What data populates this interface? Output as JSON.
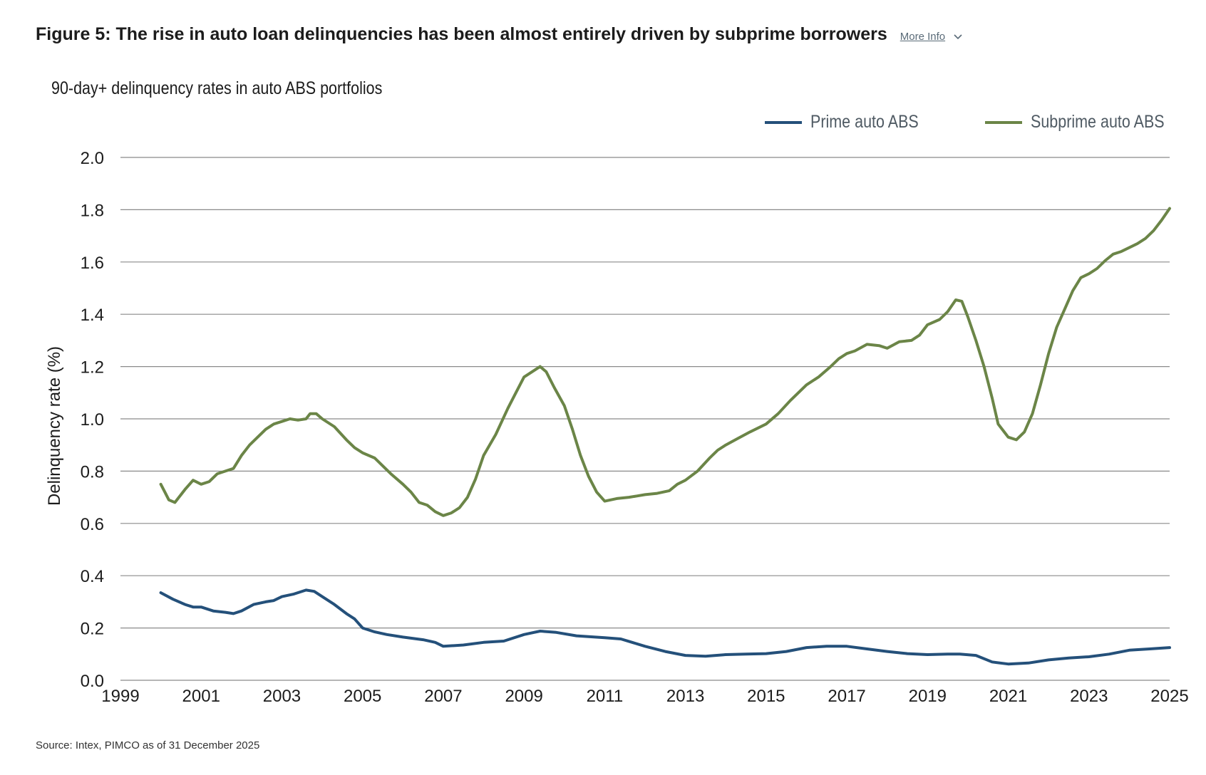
{
  "header": {
    "title": "Figure 5: The rise in auto loan delinquencies has been almost entirely driven by subprime borrowers",
    "more_info": "More Info"
  },
  "source": "Source: Intex, PIMCO as of 31 December 2025",
  "colors": {
    "prime": "#24507a",
    "subprime": "#6b8547",
    "grid": "#8a8a8a"
  },
  "icons": {
    "more_info": "chevron-down-icon"
  },
  "chart_data": {
    "type": "line",
    "title": "90-day+ delinquency rates in auto ABS portfolios",
    "ylabel": "Delinquency rate (%)",
    "xlabel": "",
    "xlim": [
      1999,
      2025
    ],
    "ylim": [
      0,
      2.0
    ],
    "yticks": [
      "0.0",
      "0.2",
      "0.4",
      "0.6",
      "0.8",
      "1.0",
      "1.2",
      "1.4",
      "1.6",
      "1.8",
      "2.0"
    ],
    "xticks": [
      "1999",
      "2001",
      "2003",
      "2005",
      "2007",
      "2009",
      "2011",
      "2013",
      "2015",
      "2017",
      "2019",
      "2021",
      "2023",
      "2025"
    ],
    "grid": true,
    "legend_position": "top-right",
    "series": [
      {
        "name": "Prime auto ABS",
        "points": [
          [
            2000.0,
            0.335
          ],
          [
            2000.3,
            0.31
          ],
          [
            2000.6,
            0.29
          ],
          [
            2000.8,
            0.28
          ],
          [
            2001.0,
            0.28
          ],
          [
            2001.3,
            0.265
          ],
          [
            2001.6,
            0.26
          ],
          [
            2001.8,
            0.255
          ],
          [
            2002.0,
            0.265
          ],
          [
            2002.3,
            0.29
          ],
          [
            2002.6,
            0.3
          ],
          [
            2002.8,
            0.305
          ],
          [
            2003.0,
            0.32
          ],
          [
            2003.3,
            0.33
          ],
          [
            2003.6,
            0.345
          ],
          [
            2003.8,
            0.34
          ],
          [
            2004.0,
            0.32
          ],
          [
            2004.3,
            0.29
          ],
          [
            2004.6,
            0.255
          ],
          [
            2004.8,
            0.235
          ],
          [
            2005.0,
            0.2
          ],
          [
            2005.3,
            0.185
          ],
          [
            2005.6,
            0.175
          ],
          [
            2006.0,
            0.165
          ],
          [
            2006.5,
            0.155
          ],
          [
            2006.8,
            0.145
          ],
          [
            2007.0,
            0.13
          ],
          [
            2007.5,
            0.135
          ],
          [
            2008.0,
            0.145
          ],
          [
            2008.5,
            0.15
          ],
          [
            2009.0,
            0.175
          ],
          [
            2009.4,
            0.188
          ],
          [
            2009.8,
            0.183
          ],
          [
            2010.3,
            0.17
          ],
          [
            2011.0,
            0.163
          ],
          [
            2011.4,
            0.158
          ],
          [
            2012.0,
            0.13
          ],
          [
            2012.5,
            0.11
          ],
          [
            2013.0,
            0.095
          ],
          [
            2013.5,
            0.092
          ],
          [
            2014.0,
            0.098
          ],
          [
            2014.5,
            0.1
          ],
          [
            2015.0,
            0.102
          ],
          [
            2015.5,
            0.11
          ],
          [
            2016.0,
            0.125
          ],
          [
            2016.5,
            0.13
          ],
          [
            2017.0,
            0.13
          ],
          [
            2017.5,
            0.12
          ],
          [
            2018.0,
            0.11
          ],
          [
            2018.5,
            0.102
          ],
          [
            2019.0,
            0.098
          ],
          [
            2019.5,
            0.1
          ],
          [
            2019.8,
            0.1
          ],
          [
            2020.2,
            0.095
          ],
          [
            2020.6,
            0.07
          ],
          [
            2021.0,
            0.062
          ],
          [
            2021.5,
            0.066
          ],
          [
            2022.0,
            0.078
          ],
          [
            2022.5,
            0.085
          ],
          [
            2023.0,
            0.09
          ],
          [
            2023.5,
            0.1
          ],
          [
            2024.0,
            0.115
          ],
          [
            2024.5,
            0.12
          ],
          [
            2025.0,
            0.125
          ]
        ]
      },
      {
        "name": "Subprime auto ABS",
        "points": [
          [
            2000.0,
            0.75
          ],
          [
            2000.1,
            0.72
          ],
          [
            2000.2,
            0.69
          ],
          [
            2000.35,
            0.68
          ],
          [
            2000.6,
            0.73
          ],
          [
            2000.8,
            0.765
          ],
          [
            2001.0,
            0.75
          ],
          [
            2001.2,
            0.76
          ],
          [
            2001.4,
            0.79
          ],
          [
            2001.6,
            0.8
          ],
          [
            2001.8,
            0.81
          ],
          [
            2002.0,
            0.86
          ],
          [
            2002.2,
            0.9
          ],
          [
            2002.4,
            0.93
          ],
          [
            2002.6,
            0.96
          ],
          [
            2002.8,
            0.98
          ],
          [
            2003.0,
            0.99
          ],
          [
            2003.2,
            1.0
          ],
          [
            2003.4,
            0.995
          ],
          [
            2003.6,
            1.0
          ],
          [
            2003.7,
            1.02
          ],
          [
            2003.85,
            1.02
          ],
          [
            2004.0,
            1.0
          ],
          [
            2004.3,
            0.97
          ],
          [
            2004.6,
            0.92
          ],
          [
            2004.8,
            0.89
          ],
          [
            2005.0,
            0.87
          ],
          [
            2005.3,
            0.85
          ],
          [
            2005.5,
            0.82
          ],
          [
            2005.7,
            0.79
          ],
          [
            2006.0,
            0.75
          ],
          [
            2006.2,
            0.72
          ],
          [
            2006.4,
            0.68
          ],
          [
            2006.6,
            0.67
          ],
          [
            2006.8,
            0.645
          ],
          [
            2007.0,
            0.63
          ],
          [
            2007.2,
            0.64
          ],
          [
            2007.4,
            0.66
          ],
          [
            2007.6,
            0.7
          ],
          [
            2007.8,
            0.77
          ],
          [
            2008.0,
            0.86
          ],
          [
            2008.3,
            0.94
          ],
          [
            2008.6,
            1.04
          ],
          [
            2008.8,
            1.1
          ],
          [
            2009.0,
            1.16
          ],
          [
            2009.2,
            1.18
          ],
          [
            2009.4,
            1.2
          ],
          [
            2009.55,
            1.18
          ],
          [
            2009.75,
            1.12
          ],
          [
            2010.0,
            1.05
          ],
          [
            2010.2,
            0.96
          ],
          [
            2010.4,
            0.86
          ],
          [
            2010.6,
            0.78
          ],
          [
            2010.8,
            0.72
          ],
          [
            2011.0,
            0.685
          ],
          [
            2011.3,
            0.695
          ],
          [
            2011.6,
            0.7
          ],
          [
            2011.8,
            0.705
          ],
          [
            2012.0,
            0.71
          ],
          [
            2012.3,
            0.715
          ],
          [
            2012.6,
            0.725
          ],
          [
            2012.8,
            0.75
          ],
          [
            2013.0,
            0.765
          ],
          [
            2013.3,
            0.8
          ],
          [
            2013.6,
            0.85
          ],
          [
            2013.8,
            0.88
          ],
          [
            2014.0,
            0.9
          ],
          [
            2014.3,
            0.925
          ],
          [
            2014.6,
            0.95
          ],
          [
            2015.0,
            0.98
          ],
          [
            2015.3,
            1.02
          ],
          [
            2015.6,
            1.07
          ],
          [
            2016.0,
            1.13
          ],
          [
            2016.3,
            1.16
          ],
          [
            2016.6,
            1.2
          ],
          [
            2016.8,
            1.23
          ],
          [
            2017.0,
            1.25
          ],
          [
            2017.2,
            1.26
          ],
          [
            2017.5,
            1.285
          ],
          [
            2017.8,
            1.28
          ],
          [
            2018.0,
            1.27
          ],
          [
            2018.3,
            1.295
          ],
          [
            2018.6,
            1.3
          ],
          [
            2018.8,
            1.32
          ],
          [
            2019.0,
            1.36
          ],
          [
            2019.3,
            1.38
          ],
          [
            2019.5,
            1.41
          ],
          [
            2019.7,
            1.455
          ],
          [
            2019.85,
            1.45
          ],
          [
            2020.0,
            1.39
          ],
          [
            2020.2,
            1.3
          ],
          [
            2020.4,
            1.2
          ],
          [
            2020.6,
            1.08
          ],
          [
            2020.75,
            0.98
          ],
          [
            2020.9,
            0.95
          ],
          [
            2021.0,
            0.93
          ],
          [
            2021.2,
            0.92
          ],
          [
            2021.4,
            0.95
          ],
          [
            2021.6,
            1.02
          ],
          [
            2021.8,
            1.13
          ],
          [
            2022.0,
            1.25
          ],
          [
            2022.2,
            1.35
          ],
          [
            2022.4,
            1.42
          ],
          [
            2022.6,
            1.49
          ],
          [
            2022.8,
            1.54
          ],
          [
            2023.0,
            1.555
          ],
          [
            2023.2,
            1.575
          ],
          [
            2023.4,
            1.605
          ],
          [
            2023.6,
            1.63
          ],
          [
            2023.8,
            1.64
          ],
          [
            2024.0,
            1.655
          ],
          [
            2024.2,
            1.67
          ],
          [
            2024.4,
            1.69
          ],
          [
            2024.6,
            1.72
          ],
          [
            2024.8,
            1.76
          ],
          [
            2025.0,
            1.805
          ]
        ]
      }
    ]
  }
}
